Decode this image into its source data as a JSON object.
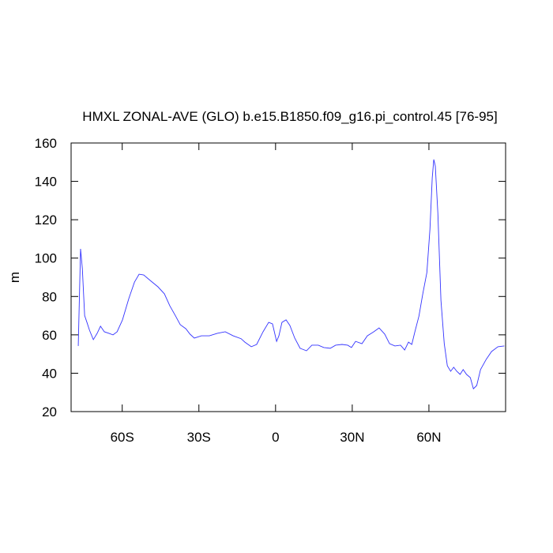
{
  "chart_data": {
    "type": "line",
    "title": "HMXL ZONAL-AVE (GLO) b.e15.B1850.f09_g16.pi_control.45 [76-95]",
    "y_label": "m",
    "color": "#3333ff",
    "xlim": [
      -80,
      90
    ],
    "ylim": [
      20,
      160
    ],
    "xticks": [
      {
        "value": -60,
        "label": "60S"
      },
      {
        "value": -30,
        "label": "30S"
      },
      0,
      {
        "value": 30,
        "label": "30N"
      },
      {
        "value": 60,
        "label": "60N"
      }
    ],
    "yticks": [
      20,
      40,
      60,
      80,
      100,
      120,
      140,
      160
    ],
    "x": [
      -77.2,
      -76.3,
      -75.6,
      -74.7,
      -73.8,
      -72.8,
      -71.3,
      -69.8,
      -68.5,
      -67,
      -65.2,
      -63.6,
      -62,
      -59.9,
      -57.4,
      -55.2,
      -53.4,
      -51.6,
      -49.1,
      -46,
      -43.5,
      -41.4,
      -39.2,
      -37.3,
      -35.1,
      -33.5,
      -31.8,
      -29,
      -25.9,
      -22.8,
      -19.7,
      -16.6,
      -13.5,
      -12,
      -9.5,
      -7.4,
      -4.9,
      -2.7,
      -1.2,
      0.4,
      1.3,
      2.5,
      4.1,
      5.6,
      7.5,
      9.6,
      12.1,
      14.2,
      16.7,
      18.9,
      21.4,
      23.5,
      26,
      28.2,
      29.7,
      31.3,
      33.8,
      35.9,
      38.4,
      40.5,
      42.7,
      44.6,
      46.7,
      48.9,
      50.5,
      52,
      53.3,
      54.5,
      56.1,
      57.6,
      59.2,
      60.4,
      61.3,
      61.9,
      62.5,
      63.5,
      64.7,
      66,
      67.2,
      68.5,
      69.7,
      70.9,
      72.2,
      73.4,
      74.7,
      76.2,
      77.4,
      78.7,
      80.2,
      82.4,
      84.5,
      87,
      89.5
    ],
    "values": [
      54.2,
      104.8,
      94.5,
      70,
      66.5,
      62.4,
      57.5,
      60.8,
      64.5,
      61.6,
      60.8,
      60,
      61.6,
      67.8,
      79,
      87.5,
      91.6,
      91.2,
      88.4,
      85,
      81.4,
      75.2,
      70,
      65.3,
      63.2,
      60.4,
      58.3,
      59.5,
      59.5,
      60.8,
      61.6,
      59.5,
      58,
      56.2,
      53.8,
      55,
      61.6,
      66.5,
      65.7,
      56.6,
      59.5,
      66.5,
      67.8,
      64.9,
      58.3,
      53,
      51.7,
      54.6,
      54.6,
      53.4,
      53,
      54.6,
      55,
      54.6,
      53.4,
      56.6,
      55.4,
      59.5,
      61.6,
      63.6,
      60.4,
      55.4,
      54.2,
      54.6,
      52.1,
      56.2,
      55,
      61.6,
      69.8,
      81.4,
      92.5,
      115.1,
      141.9,
      151.4,
      148,
      123.4,
      78,
      55.4,
      43.9,
      41,
      43.1,
      41,
      39.4,
      41.9,
      39.4,
      37.7,
      31.9,
      33.6,
      41.9,
      47.2,
      51.3,
      53.8,
      54.2
    ]
  }
}
